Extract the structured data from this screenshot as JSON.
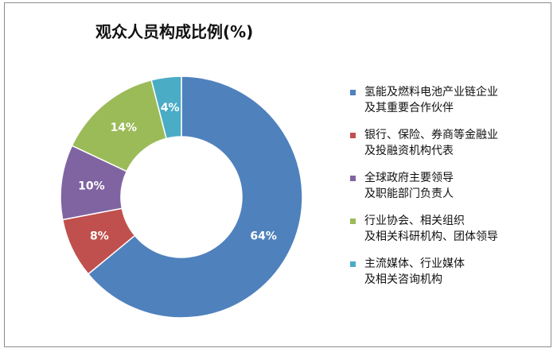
{
  "chart_data": {
    "type": "pie",
    "subtype": "donut",
    "title": "观众人员构成比例(%)",
    "categories": [
      "氢能及燃料电池产业链企业及其重要合作伙伴",
      "银行、保险、券商等金融业及投融资机构代表",
      "全球政府主要领导及职能部门负责人",
      "行业协会、相关组织及相关科研机构、团体领导",
      "主流媒体、行业媒体及相关咨询机构"
    ],
    "values": [
      64,
      8,
      10,
      14,
      4
    ],
    "value_labels": [
      "64%",
      "8%",
      "10%",
      "14%",
      "4%"
    ],
    "colors": [
      "#4f81bd",
      "#c0504d",
      "#8064a2",
      "#9bbb59",
      "#4bacc6"
    ],
    "legend_position": "right",
    "legend": [
      {
        "line1": "氢能及燃料电池产业链企业",
        "line2": "及其重要合作伙伴"
      },
      {
        "line1": "银行、保险、券商等金融业",
        "line2": "及投融资机构代表"
      },
      {
        "line1": "全球政府主要领导",
        "line2": "及职能部门负责人"
      },
      {
        "line1": "行业协会、相关组织",
        "line2": "及相关科研机构、团体领导"
      },
      {
        "line1": "主流媒体、行业媒体",
        "line2": "及相关咨询机构"
      }
    ]
  }
}
